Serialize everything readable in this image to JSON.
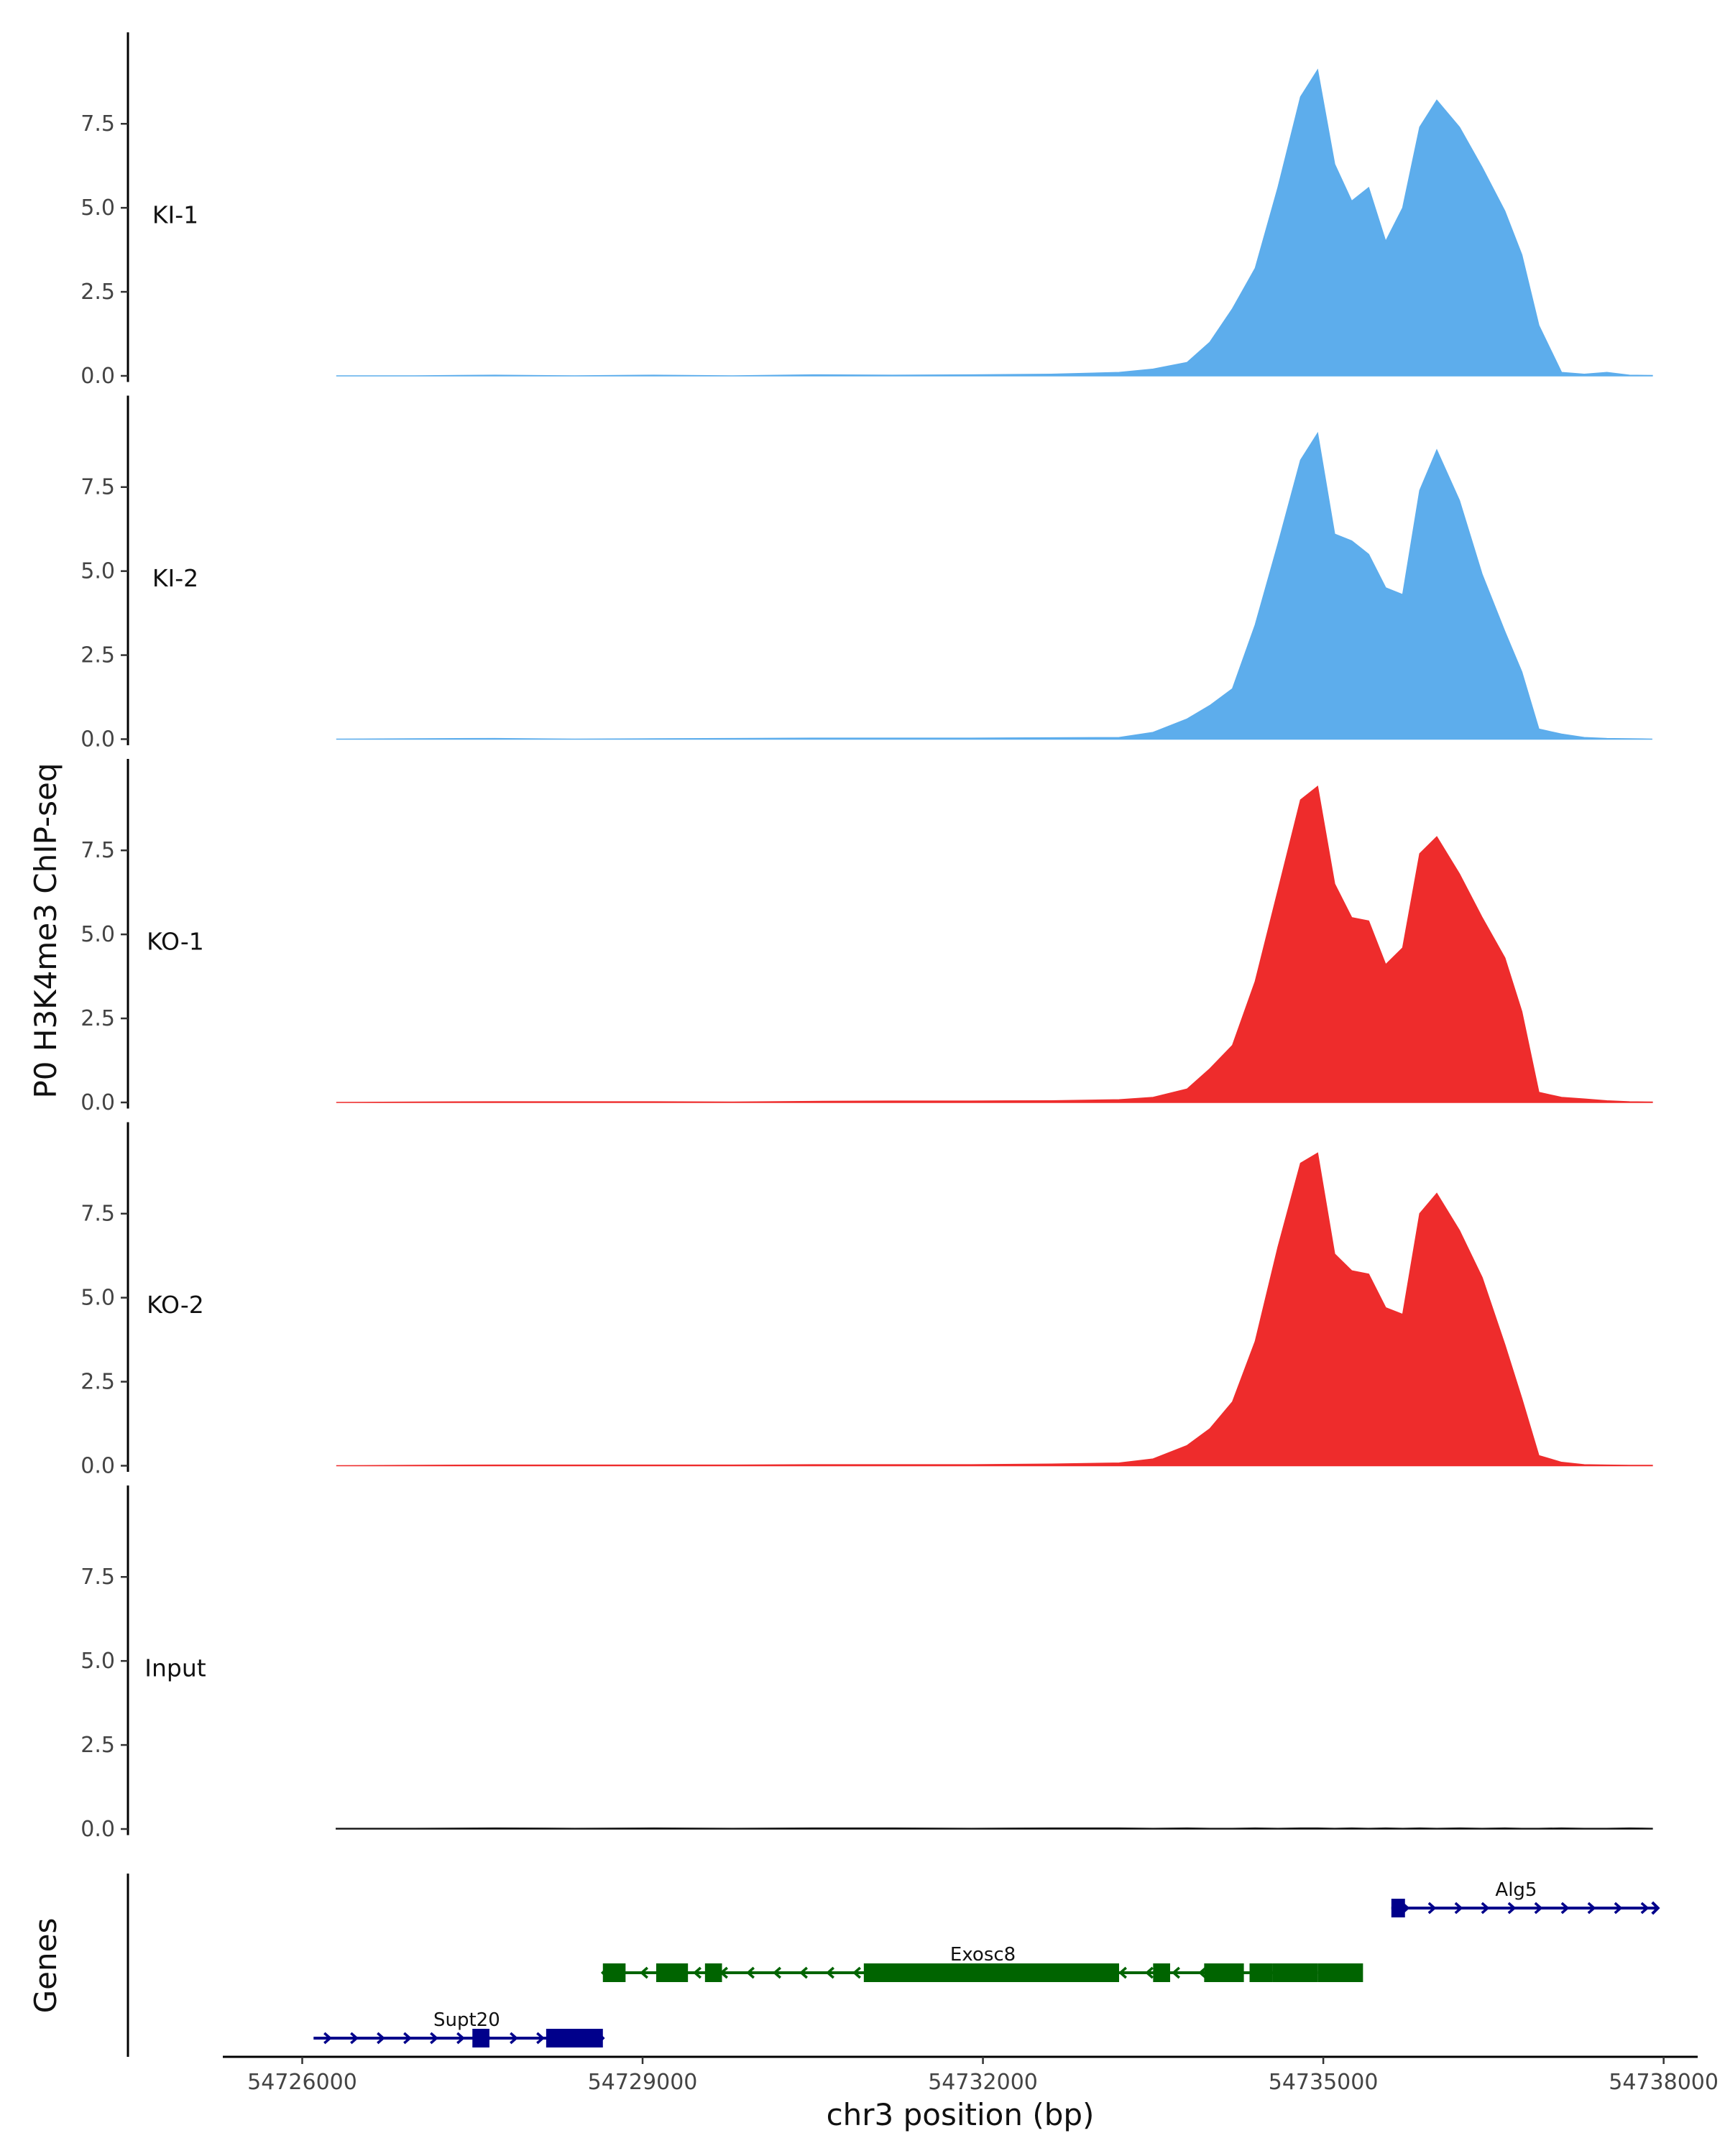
{
  "chart_data": {
    "type": "area",
    "title": "",
    "ylabel": "P0 H3K4me3 ChIP-seq",
    "xlabel": "chr3 position (bp)",
    "xlim": [
      54725300,
      54738300
    ],
    "ylim": [
      0,
      9.9
    ],
    "y_ticks": [
      "0.0",
      "2.5",
      "5.0",
      "7.5"
    ],
    "x_ticks": [
      "54726000",
      "54729000",
      "54732000",
      "54735000",
      "54738000"
    ],
    "genes_label": "Genes",
    "x": [
      54726300,
      54727000,
      54727700,
      54728400,
      54729100,
      54729800,
      54730500,
      54731200,
      54731900,
      54732600,
      54733200,
      54733500,
      54733800,
      54734000,
      54734200,
      54734400,
      54734600,
      54734800,
      54734950,
      54735100,
      54735250,
      54735400,
      54735550,
      54735700,
      54735850,
      54736000,
      54736200,
      54736400,
      54736600,
      54736750,
      54736900,
      54737100,
      54737300,
      54737500,
      54737700,
      54737900
    ],
    "series": [
      {
        "name": "KI-1",
        "color": "#5DADEC",
        "values": [
          0,
          0,
          0.02,
          0,
          0.02,
          0,
          0.03,
          0.02,
          0.03,
          0.05,
          0.1,
          0.2,
          0.4,
          1.0,
          2.0,
          3.2,
          5.6,
          8.3,
          9.1,
          6.3,
          5.2,
          5.6,
          4.0,
          5.0,
          7.4,
          8.2,
          7.4,
          6.2,
          4.9,
          3.6,
          1.5,
          0.1,
          0.05,
          0.1,
          0.02,
          0.01
        ]
      },
      {
        "name": "KI-2",
        "color": "#5DADEC",
        "values": [
          0,
          0.01,
          0.02,
          0,
          0.01,
          0.02,
          0.03,
          0.03,
          0.03,
          0.04,
          0.05,
          0.2,
          0.6,
          1.0,
          1.5,
          3.4,
          5.8,
          8.3,
          9.1,
          6.1,
          5.9,
          5.5,
          4.5,
          4.3,
          7.4,
          8.6,
          7.1,
          4.9,
          3.2,
          2.0,
          0.3,
          0.15,
          0.05,
          0.02,
          0.01,
          0.0
        ]
      },
      {
        "name": "KO-1",
        "color": "#EE2C2C",
        "values": [
          0,
          0.01,
          0.02,
          0.02,
          0.02,
          0.01,
          0.03,
          0.04,
          0.04,
          0.05,
          0.08,
          0.15,
          0.4,
          1.0,
          1.7,
          3.6,
          6.3,
          9.0,
          9.4,
          6.5,
          5.5,
          5.4,
          4.1,
          4.6,
          7.4,
          7.9,
          6.8,
          5.5,
          4.3,
          2.7,
          0.3,
          0.15,
          0.1,
          0.05,
          0.02,
          0.01
        ]
      },
      {
        "name": "KO-2",
        "color": "#EE2C2C",
        "values": [
          0,
          0.01,
          0.02,
          0.02,
          0.02,
          0.02,
          0.03,
          0.03,
          0.03,
          0.05,
          0.08,
          0.2,
          0.6,
          1.1,
          1.9,
          3.7,
          6.5,
          9.0,
          9.3,
          6.3,
          5.8,
          5.7,
          4.7,
          4.5,
          7.5,
          8.1,
          7.0,
          5.6,
          3.6,
          2.0,
          0.3,
          0.1,
          0.03,
          0.02,
          0.01,
          0.01
        ]
      },
      {
        "name": "Input",
        "color": "#111111",
        "values": [
          0.02,
          0.02,
          0.03,
          0.02,
          0.03,
          0.02,
          0.03,
          0.03,
          0.02,
          0.03,
          0.03,
          0.02,
          0.03,
          0.02,
          0.02,
          0.03,
          0.02,
          0.03,
          0.03,
          0.02,
          0.03,
          0.02,
          0.03,
          0.02,
          0.03,
          0.02,
          0.03,
          0.02,
          0.03,
          0.02,
          0.02,
          0.03,
          0.02,
          0.02,
          0.03,
          0.02
        ]
      }
    ],
    "genes": [
      {
        "name": "Supt20",
        "strand": "+",
        "color": "#00008B",
        "row": 0,
        "start": 54726100,
        "end": 54728650,
        "label_pos": 54727450,
        "exons": [
          [
            54727500,
            54727650
          ],
          [
            54728150,
            54728650
          ]
        ]
      },
      {
        "name": "Exosc8",
        "strand": "-",
        "color": "#006400",
        "row": 1,
        "start": 54728650,
        "end": 54734950,
        "label_pos": 54732000,
        "exons": [
          [
            54728650,
            54728850
          ],
          [
            54729120,
            54729400
          ],
          [
            54729550,
            54729700
          ],
          [
            54730950,
            54733200
          ],
          [
            54733500,
            54733650
          ],
          [
            54733950,
            54734300
          ],
          [
            54734350,
            54734550
          ],
          [
            54734550,
            54734950
          ],
          [
            54734950,
            54735350
          ]
        ]
      },
      {
        "name": "Alg5",
        "strand": "+",
        "color": "#00008B",
        "row": 2,
        "start": 54735600,
        "end": 54737950,
        "label_pos": 54736700,
        "exons": [
          [
            54735600,
            54735720
          ]
        ]
      }
    ]
  }
}
